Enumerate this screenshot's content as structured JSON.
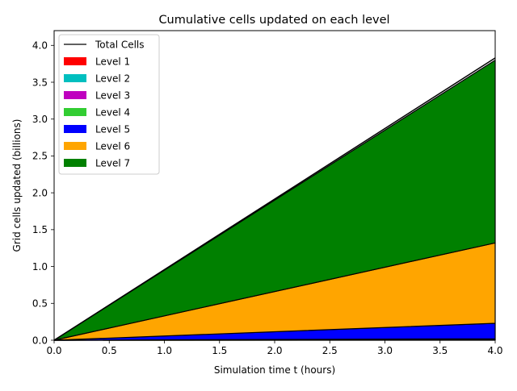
{
  "chart_data": {
    "type": "area",
    "title": "Cumulative cells updated on each level",
    "xlabel": "Simulation time t (hours)",
    "ylabel": "Grid cells updated (billions)",
    "xlim": [
      0,
      4
    ],
    "ylim": [
      0,
      4.2
    ],
    "xticks": [
      0.0,
      0.5,
      1.0,
      1.5,
      2.0,
      2.5,
      3.0,
      3.5,
      4.0
    ],
    "xtick_labels": [
      "0.0",
      "0.5",
      "1.0",
      "1.5",
      "2.0",
      "2.5",
      "3.0",
      "3.5",
      "4.0"
    ],
    "yticks": [
      0.0,
      0.5,
      1.0,
      1.5,
      2.0,
      2.5,
      3.0,
      3.5,
      4.0
    ],
    "ytick_labels": [
      "0.0",
      "0.5",
      "1.0",
      "1.5",
      "2.0",
      "2.5",
      "3.0",
      "3.5",
      "4.0"
    ],
    "grid": false,
    "stacked": true,
    "legend_position": "top-left",
    "x": [
      0,
      4
    ],
    "total": {
      "name": "Total Cells",
      "color": "#000000",
      "values": [
        0,
        3.83
      ]
    },
    "series": [
      {
        "name": "Level 1",
        "color": "#ff0000",
        "values": [
          0,
          0.001
        ]
      },
      {
        "name": "Level 2",
        "color": "#00bfbf",
        "values": [
          0,
          0.002
        ]
      },
      {
        "name": "Level 3",
        "color": "#bf00bf",
        "values": [
          0,
          0.005
        ]
      },
      {
        "name": "Level 4",
        "color": "#32cd32",
        "values": [
          0,
          0.012
        ]
      },
      {
        "name": "Level 5",
        "color": "#0000ff",
        "values": [
          0,
          0.21
        ]
      },
      {
        "name": "Level 6",
        "color": "#ffa500",
        "values": [
          0,
          1.09
        ]
      },
      {
        "name": "Level 7",
        "color": "#008000",
        "values": [
          0,
          2.48
        ]
      }
    ]
  }
}
